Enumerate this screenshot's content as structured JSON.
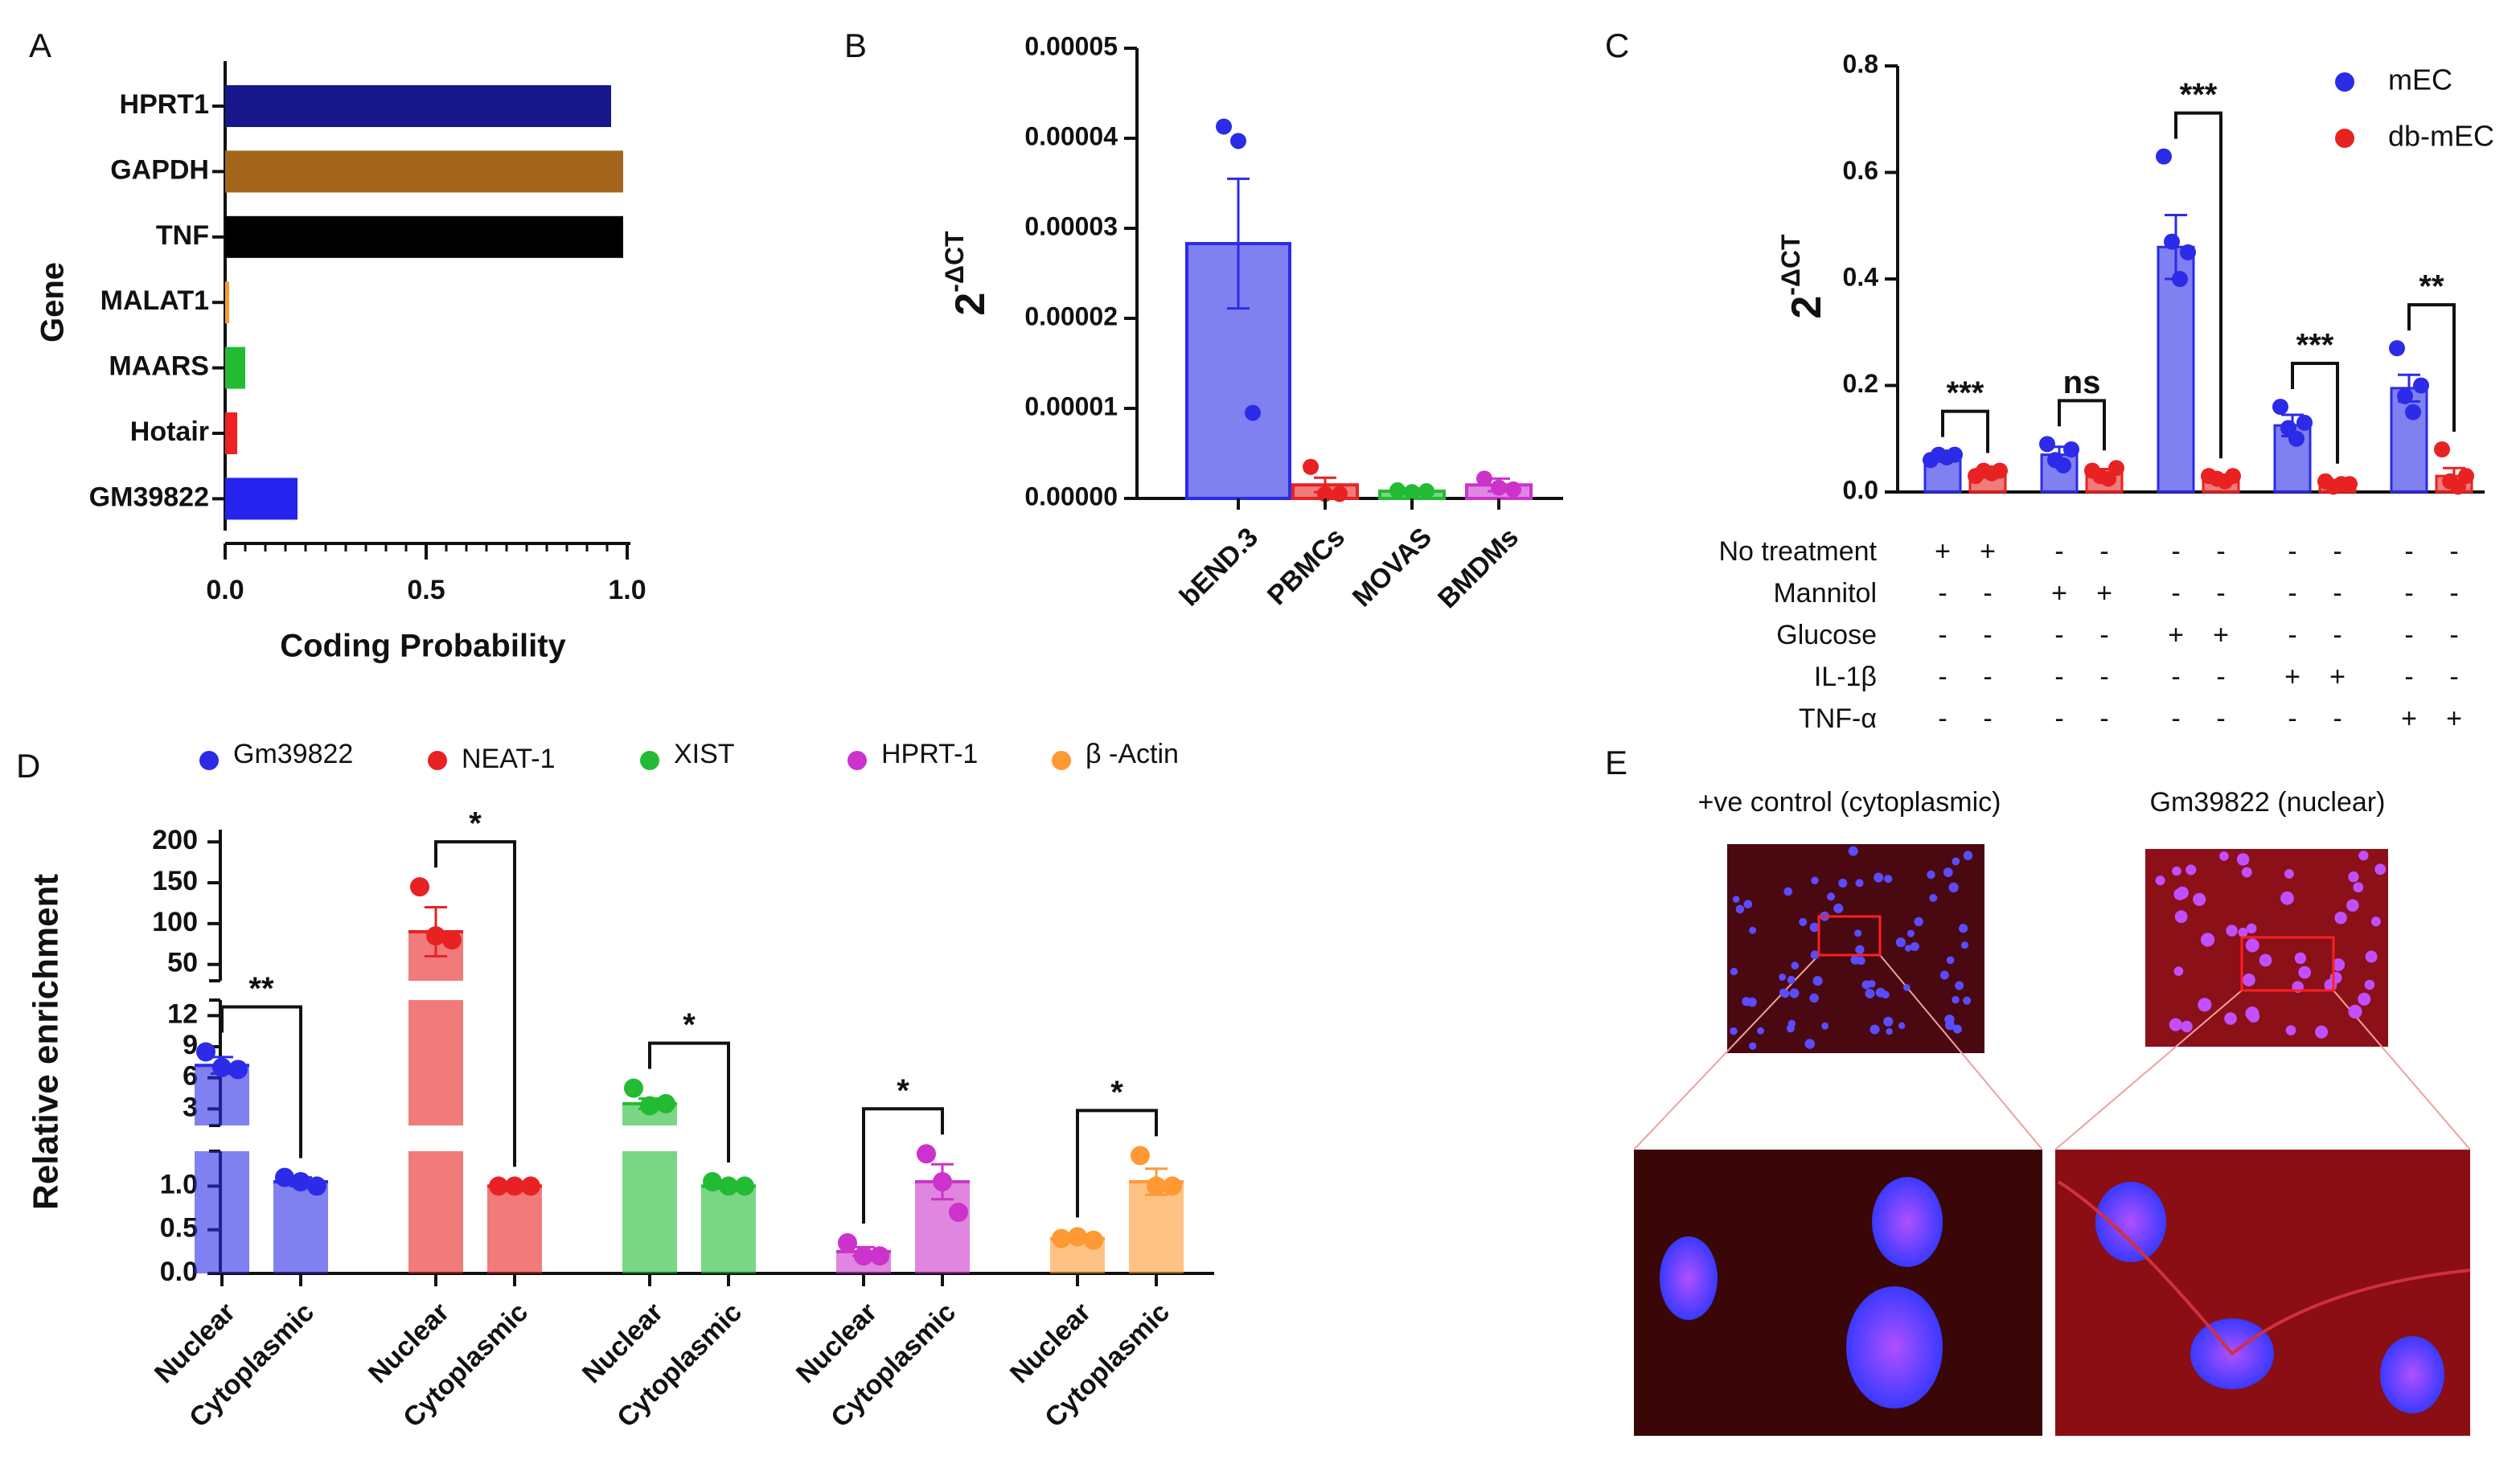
{
  "chart_data": [
    {
      "type": "hbar",
      "label": "A",
      "y_label": "Gene",
      "x_label": "Coding Probability",
      "categories": [
        "HPRT1",
        "GAPDH",
        "TNF",
        "MALAT1",
        "MAARS",
        "Hotair",
        "GM39822"
      ],
      "values": [
        0.96,
        0.99,
        0.99,
        0.01,
        0.05,
        0.03,
        0.18
      ],
      "colors": [
        "#17168a",
        "#a3661c",
        "#000000",
        "#f0a030",
        "#22bb33",
        "#ee2222",
        "#2424ee"
      ],
      "xlim": [
        0,
        1
      ],
      "xticks": [
        {
          "value": 0,
          "label": "0.0"
        },
        {
          "value": 0.5,
          "label": "0.5"
        },
        {
          "value": 1,
          "label": "1.0"
        }
      ]
    },
    {
      "type": "dotbar",
      "label": "B",
      "y_label": "2",
      "y_label_sup": "-ΔCT",
      "categories": [
        "bEND.3",
        "PBMCs",
        "MOVAS",
        "BMDMs"
      ],
      "values": [
        2.83e-05,
        1.5e-06,
        8e-07,
        1.5e-06
      ],
      "errors": [
        7.2e-06,
        8e-07,
        3e-07,
        7e-07
      ],
      "points": [
        [
          4.13e-05,
          3.97e-05,
          9.5e-06
        ],
        [
          3.5e-06,
          5e-07,
          5e-07
        ],
        [
          9e-07,
          7e-07,
          8e-07
        ],
        [
          2.2e-06,
          1.2e-06,
          1e-06
        ]
      ],
      "colors": [
        "#2b2be8",
        "#e82222",
        "#22bb33",
        "#cc33cc"
      ],
      "ylim": [
        0,
        5e-05
      ],
      "yticks": [
        {
          "value": 0,
          "label": "0.00000"
        },
        {
          "value": 1e-05,
          "label": "0.00001"
        },
        {
          "value": 2e-05,
          "label": "0.00002"
        },
        {
          "value": 3e-05,
          "label": "0.00003"
        },
        {
          "value": 4e-05,
          "label": "0.00004"
        },
        {
          "value": 5e-05,
          "label": "0.00005"
        }
      ]
    },
    {
      "type": "grouped_dotbar",
      "label": "C",
      "y_label": "2",
      "y_label_sup": "-ΔCT",
      "legend": "upper right",
      "series": [
        {
          "name": "mEC",
          "color": "#2b2be8",
          "values": [
            0.065,
            0.07,
            0.46,
            0.125,
            0.195
          ],
          "errors": [
            0.005,
            0.015,
            0.06,
            0.02,
            0.025
          ],
          "points": [
            [
              0.06,
              0.07,
              0.065,
              0.07
            ],
            [
              0.09,
              0.06,
              0.05,
              0.08
            ],
            [
              0.63,
              0.47,
              0.4,
              0.45
            ],
            [
              0.16,
              0.12,
              0.1,
              0.13
            ],
            [
              0.27,
              0.18,
              0.15,
              0.2
            ]
          ]
        },
        {
          "name": "db-mEC",
          "color": "#e82222",
          "values": [
            0.035,
            0.035,
            0.025,
            0.015,
            0.03
          ],
          "errors": [
            0.005,
            0.008,
            0.005,
            0.005,
            0.015
          ],
          "points": [
            [
              0.03,
              0.04,
              0.035,
              0.04
            ],
            [
              0.04,
              0.03,
              0.025,
              0.045
            ],
            [
              0.03,
              0.025,
              0.02,
              0.03
            ],
            [
              0.02,
              0.01,
              0.015,
              0.015
            ],
            [
              0.08,
              0.02,
              0.01,
              0.03
            ]
          ]
        }
      ],
      "significance": [
        "***",
        "ns",
        "***",
        "***",
        "**"
      ],
      "ylim": [
        0,
        0.8
      ],
      "yticks": [
        {
          "value": 0,
          "label": "0.0"
        },
        {
          "value": 0.2,
          "label": "0.2"
        },
        {
          "value": 0.4,
          "label": "0.4"
        },
        {
          "value": 0.6,
          "label": "0.6"
        },
        {
          "value": 0.8,
          "label": "0.8"
        }
      ],
      "treatments": [
        {
          "name": "No treatment",
          "marks": [
            "+",
            "+",
            "-",
            "-",
            "-",
            "-",
            "-",
            "-",
            "-",
            "-"
          ]
        },
        {
          "name": "Mannitol",
          "marks": [
            "-",
            "-",
            "+",
            "+",
            "-",
            "-",
            "-",
            "-",
            "-",
            "-"
          ]
        },
        {
          "name": "Glucose",
          "marks": [
            "-",
            "-",
            "-",
            "-",
            "+",
            "+",
            "-",
            "-",
            "-",
            "-"
          ]
        },
        {
          "name": "IL-1β",
          "marks": [
            "-",
            "-",
            "-",
            "-",
            "-",
            "-",
            "+",
            "+",
            "-",
            "-"
          ]
        },
        {
          "name": "TNF-α",
          "marks": [
            "-",
            "-",
            "-",
            "-",
            "-",
            "-",
            "-",
            "-",
            "+",
            "+"
          ]
        }
      ]
    },
    {
      "type": "broken_dotbar",
      "label": "D",
      "y_label": "Relative enrichment",
      "categories": [
        "Nuclear",
        "Cytoplasmic"
      ],
      "series": [
        {
          "name": "Gm39822",
          "color": "#2b2be8",
          "values": [
            7.2,
            1.05
          ],
          "errors": [
            0.8,
            0.05
          ],
          "points": [
            [
              8.5,
              7.0,
              6.8
            ],
            [
              1.1,
              1.05,
              1.0
            ]
          ]
        },
        {
          "name": "NEAT-1",
          "color": "#e82222",
          "values": [
            90,
            1.0
          ],
          "errors": [
            30,
            0.02
          ],
          "points": [
            [
              145,
              85,
              80
            ],
            [
              1.0,
              1.0,
              1.0
            ]
          ]
        },
        {
          "name": "XIST",
          "color": "#22bb33",
          "values": [
            3.5,
            1.0
          ],
          "errors": [
            0.5,
            0.03
          ],
          "points": [
            [
              5,
              3.3,
              3.5
            ],
            [
              1.05,
              1.0,
              1.0
            ]
          ]
        },
        {
          "name": "HPRT-1",
          "color": "#cc33cc",
          "values": [
            0.25,
            1.05
          ],
          "errors": [
            0.05,
            0.2
          ],
          "points": [
            [
              0.35,
              0.2,
              0.2
            ],
            [
              1.37,
              1.05,
              0.7
            ]
          ]
        },
        {
          "name": "β -Actin",
          "color": "#ff9933",
          "values": [
            0.4,
            1.05
          ],
          "errors": [
            0.03,
            0.15
          ],
          "points": [
            [
              0.4,
              0.42,
              0.38
            ],
            [
              1.35,
              1.0,
              1.0
            ]
          ]
        }
      ],
      "significance": [
        "**",
        "*",
        "*",
        "*",
        "*"
      ],
      "y_segments": [
        {
          "ylim": [
            0,
            1.4
          ],
          "yticks": [
            {
              "value": 0,
              "label": "0.0"
            },
            {
              "value": 0.5,
              "label": "0.5"
            },
            {
              "value": 1,
              "label": "1.0"
            }
          ]
        },
        {
          "ylim": [
            1.4,
            13.5
          ],
          "yticks": [
            3,
            6,
            9,
            12
          ]
        },
        {
          "ylim": [
            30,
            215
          ],
          "yticks": [
            50,
            100,
            150,
            200
          ]
        }
      ]
    }
  ],
  "panel_e": {
    "label": "E",
    "captions": [
      "+ve control (cytoplasmic)",
      "Gm39822 (nuclear)"
    ]
  }
}
